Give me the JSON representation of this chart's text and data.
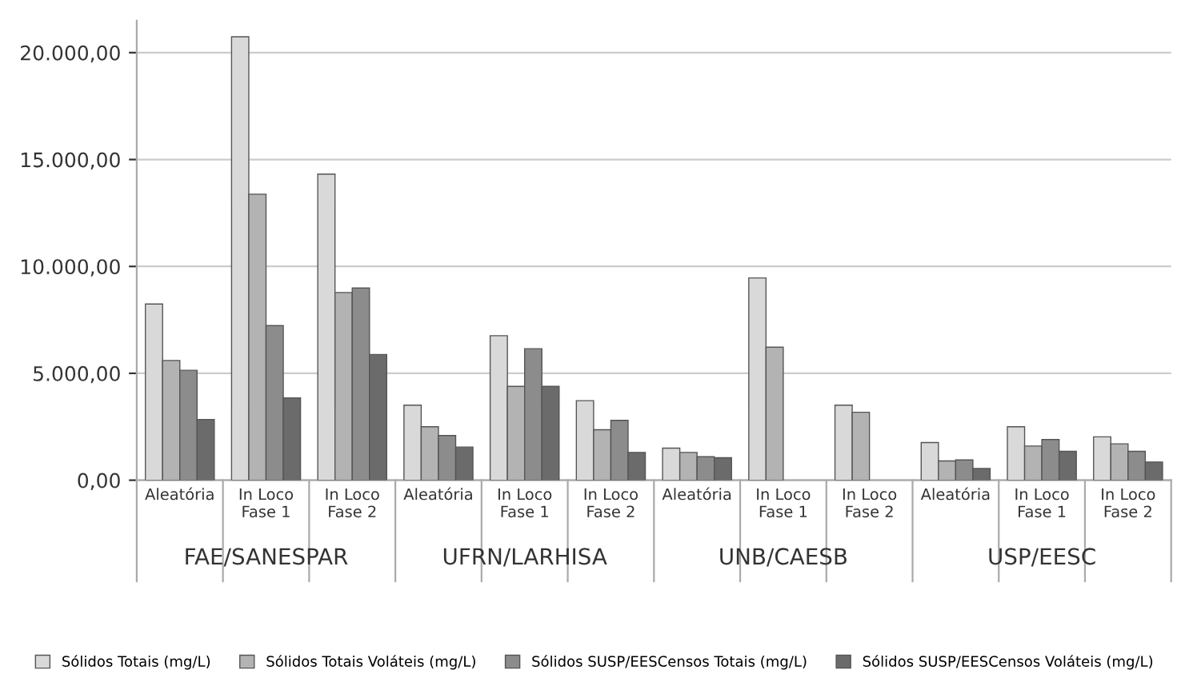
{
  "chart_data": {
    "type": "bar",
    "categories": [
      "Aleatória",
      "In Loco\nFase 1",
      "In Loco\nFase 2",
      "Aleatória",
      "In Loco\nFase 1",
      "In Loco\nFase 2",
      "Aleatória",
      "In Loco\nFase 1",
      "In Loco\nFase 2",
      "Aleatória",
      "In Loco\nFase 1",
      "In Loco\nFase 2"
    ],
    "series": [
      {
        "name": "Sólidos Totais (mg/L)",
        "color": "#d9d9d9",
        "values": [
          8240,
          20740,
          14320,
          3510,
          6760,
          3720,
          1500,
          9460,
          3510,
          1760,
          2500,
          2030
        ]
      },
      {
        "name": "Sólidos Totais Voláteis (mg/L)",
        "color": "#b3b3b3",
        "values": [
          5600,
          13380,
          8780,
          2500,
          4390,
          2360,
          1300,
          6220,
          3180,
          900,
          1600,
          1700
        ]
      },
      {
        "name": "Sólidos SUSP/EESCensos Totais (mg/L)",
        "color": "#8c8c8c",
        "values": [
          5140,
          7230,
          8990,
          2090,
          6150,
          2800,
          1100,
          null,
          null,
          950,
          1900,
          1350
        ]
      },
      {
        "name": "Sólidos SUSP/EESCensos Voláteis (mg/L)",
        "color": "#6b6b6b",
        "values": [
          2840,
          3850,
          5880,
          1550,
          4390,
          1300,
          1050,
          null,
          null,
          550,
          1350,
          850
        ]
      }
    ],
    "annotations": [
      "FAE/SANESPAR",
      "UFRN/LARHISA",
      "UNB/CAESB",
      "USP/EESC"
    ],
    "ylim": [
      0,
      21500
    ],
    "yticks": [
      {
        "value": 0,
        "label": "0,00"
      },
      {
        "value": 5000,
        "label": "5.000,00"
      },
      {
        "value": 10000,
        "label": "10.000,00"
      },
      {
        "value": 15000,
        "label": "15.000,00"
      },
      {
        "value": 20000,
        "label": "20.000,00"
      }
    ],
    "grid": "y",
    "legend": "bottom"
  }
}
